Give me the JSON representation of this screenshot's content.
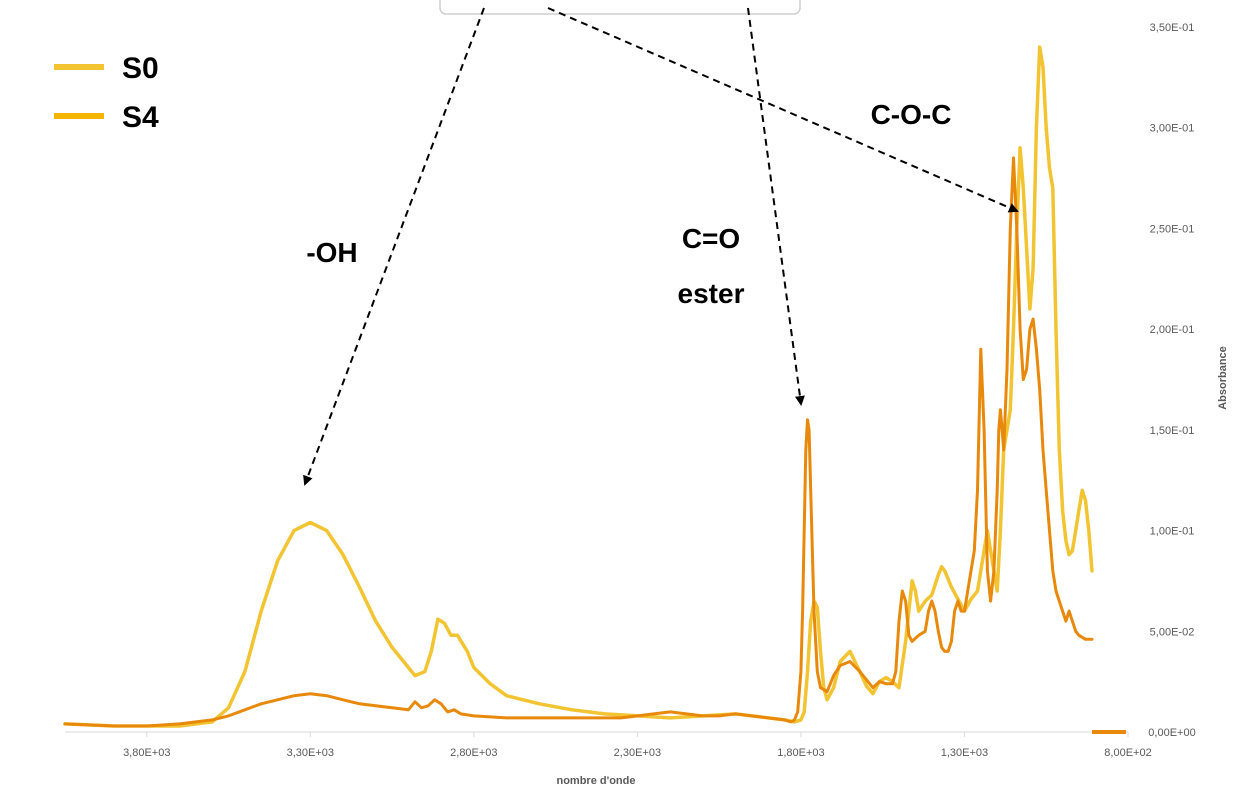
{
  "chart_data": {
    "type": "line",
    "xlabel": "nombre d'onde",
    "ylabel": "Absorbance",
    "x_reversed": true,
    "xlim": [
      4050,
      800
    ],
    "ylim": [
      0,
      0.35
    ],
    "x_ticks": [
      {
        "value": 3800,
        "label": "3,80E+03"
      },
      {
        "value": 3300,
        "label": "3,30E+03"
      },
      {
        "value": 2800,
        "label": "2,80E+03"
      },
      {
        "value": 2300,
        "label": "2,30E+03"
      },
      {
        "value": 1800,
        "label": "1,80E+03"
      },
      {
        "value": 1300,
        "label": "1,30E+03"
      },
      {
        "value": 800,
        "label": "8,00E+02"
      }
    ],
    "y_ticks": [
      {
        "value": 0,
        "label": "0,00E+00"
      },
      {
        "value": 0.05,
        "label": "5,00E-02"
      },
      {
        "value": 0.1,
        "label": "1,00E-01"
      },
      {
        "value": 0.15,
        "label": "1,50E-01"
      },
      {
        "value": 0.2,
        "label": "2,00E-01"
      },
      {
        "value": 0.25,
        "label": "2,50E-01"
      },
      {
        "value": 0.3,
        "label": "3,00E-01"
      },
      {
        "value": 0.35,
        "label": "3,50E-01"
      }
    ],
    "legend_position": "top-left",
    "series": [
      {
        "name": "S0",
        "color": "#F2C431",
        "x": [
          4050,
          3900,
          3800,
          3700,
          3600,
          3550,
          3500,
          3450,
          3400,
          3350,
          3300,
          3250,
          3200,
          3150,
          3100,
          3050,
          3000,
          2980,
          2950,
          2930,
          2910,
          2890,
          2870,
          2850,
          2820,
          2800,
          2750,
          2700,
          2600,
          2500,
          2400,
          2300,
          2200,
          2100,
          2000,
          1900,
          1850,
          1820,
          1800,
          1790,
          1780,
          1770,
          1760,
          1750,
          1740,
          1730,
          1720,
          1700,
          1680,
          1650,
          1620,
          1600,
          1580,
          1560,
          1540,
          1520,
          1500,
          1480,
          1460,
          1450,
          1440,
          1420,
          1400,
          1380,
          1370,
          1360,
          1340,
          1320,
          1300,
          1280,
          1260,
          1250,
          1240,
          1230,
          1220,
          1210,
          1200,
          1190,
          1180,
          1170,
          1160,
          1150,
          1140,
          1130,
          1120,
          1110,
          1100,
          1090,
          1080,
          1070,
          1060,
          1050,
          1040,
          1030,
          1020,
          1010,
          1000,
          990,
          980,
          970,
          960,
          950,
          940,
          930,
          920,
          910
        ],
        "y": [
          0.004,
          0.003,
          0.003,
          0.003,
          0.005,
          0.012,
          0.03,
          0.06,
          0.085,
          0.1,
          0.104,
          0.1,
          0.088,
          0.072,
          0.055,
          0.042,
          0.032,
          0.028,
          0.03,
          0.04,
          0.056,
          0.054,
          0.048,
          0.048,
          0.04,
          0.032,
          0.024,
          0.018,
          0.014,
          0.011,
          0.009,
          0.008,
          0.007,
          0.008,
          0.009,
          0.007,
          0.006,
          0.005,
          0.006,
          0.01,
          0.03,
          0.055,
          0.065,
          0.062,
          0.04,
          0.022,
          0.016,
          0.022,
          0.035,
          0.04,
          0.03,
          0.023,
          0.019,
          0.025,
          0.027,
          0.025,
          0.022,
          0.045,
          0.075,
          0.07,
          0.06,
          0.065,
          0.068,
          0.078,
          0.082,
          0.08,
          0.072,
          0.066,
          0.06,
          0.066,
          0.07,
          0.08,
          0.09,
          0.1,
          0.09,
          0.08,
          0.07,
          0.1,
          0.14,
          0.15,
          0.16,
          0.2,
          0.25,
          0.29,
          0.27,
          0.24,
          0.21,
          0.23,
          0.3,
          0.34,
          0.33,
          0.3,
          0.28,
          0.27,
          0.2,
          0.14,
          0.11,
          0.095,
          0.088,
          0.09,
          0.1,
          0.11,
          0.12,
          0.115,
          0.1,
          0.08
        ]
      },
      {
        "name": "S4",
        "color": "#E8890C",
        "x": [
          4050,
          3900,
          3800,
          3700,
          3600,
          3550,
          3500,
          3450,
          3400,
          3350,
          3300,
          3250,
          3200,
          3150,
          3100,
          3050,
          3000,
          2980,
          2960,
          2940,
          2920,
          2900,
          2880,
          2860,
          2840,
          2800,
          2700,
          2600,
          2500,
          2400,
          2350,
          2300,
          2250,
          2200,
          2150,
          2100,
          2050,
          2000,
          1950,
          1900,
          1850,
          1830,
          1820,
          1810,
          1800,
          1795,
          1790,
          1785,
          1780,
          1775,
          1770,
          1760,
          1750,
          1740,
          1720,
          1700,
          1680,
          1650,
          1620,
          1600,
          1580,
          1560,
          1540,
          1520,
          1510,
          1500,
          1490,
          1480,
          1470,
          1460,
          1440,
          1420,
          1410,
          1400,
          1390,
          1380,
          1370,
          1360,
          1350,
          1340,
          1330,
          1320,
          1310,
          1300,
          1290,
          1280,
          1270,
          1260,
          1250,
          1240,
          1230,
          1220,
          1210,
          1200,
          1195,
          1190,
          1185,
          1180,
          1170,
          1160,
          1150,
          1140,
          1130,
          1120,
          1110,
          1100,
          1090,
          1080,
          1070,
          1060,
          1050,
          1040,
          1030,
          1020,
          1010,
          1000,
          990,
          980,
          970,
          960,
          950,
          940,
          930,
          920,
          910
        ],
        "y": [
          0.004,
          0.003,
          0.003,
          0.004,
          0.006,
          0.008,
          0.011,
          0.014,
          0.016,
          0.018,
          0.019,
          0.018,
          0.016,
          0.014,
          0.013,
          0.012,
          0.011,
          0.015,
          0.012,
          0.013,
          0.016,
          0.014,
          0.01,
          0.011,
          0.009,
          0.008,
          0.007,
          0.007,
          0.007,
          0.007,
          0.007,
          0.008,
          0.009,
          0.01,
          0.009,
          0.008,
          0.008,
          0.009,
          0.008,
          0.007,
          0.006,
          0.005,
          0.006,
          0.01,
          0.03,
          0.06,
          0.1,
          0.14,
          0.155,
          0.15,
          0.12,
          0.06,
          0.03,
          0.022,
          0.02,
          0.028,
          0.033,
          0.035,
          0.03,
          0.026,
          0.022,
          0.025,
          0.024,
          0.024,
          0.03,
          0.055,
          0.07,
          0.065,
          0.048,
          0.045,
          0.048,
          0.05,
          0.06,
          0.065,
          0.06,
          0.05,
          0.042,
          0.04,
          0.04,
          0.045,
          0.06,
          0.065,
          0.06,
          0.06,
          0.07,
          0.08,
          0.09,
          0.12,
          0.19,
          0.15,
          0.08,
          0.065,
          0.08,
          0.12,
          0.15,
          0.16,
          0.15,
          0.14,
          0.18,
          0.25,
          0.285,
          0.25,
          0.2,
          0.175,
          0.18,
          0.2,
          0.205,
          0.19,
          0.17,
          0.14,
          0.12,
          0.1,
          0.08,
          0.07,
          0.065,
          0.06,
          0.055,
          0.06,
          0.055,
          0.05,
          0.048,
          0.047,
          0.046,
          0.046,
          0.046
        ]
      }
    ],
    "annotations": [
      {
        "text": "-OH"
      },
      {
        "text": "C=O"
      },
      {
        "text": "ester"
      },
      {
        "text": "C-O-C"
      }
    ]
  }
}
